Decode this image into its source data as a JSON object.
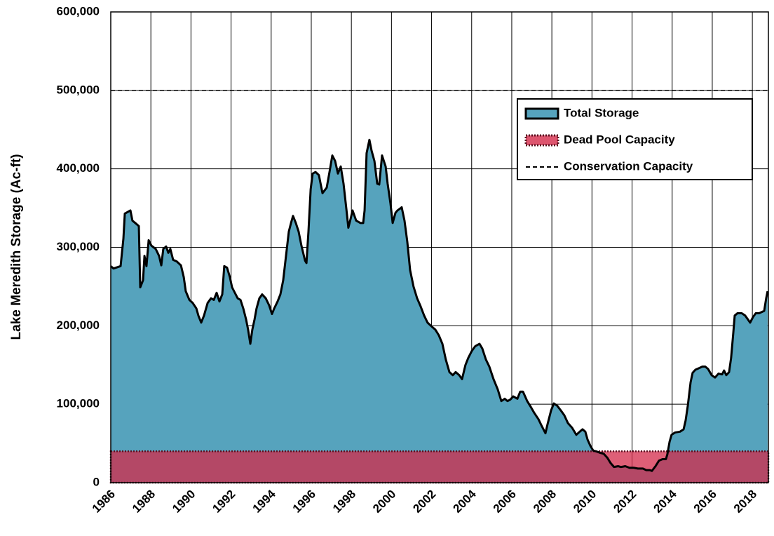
{
  "chart_data": {
    "type": "area",
    "y_label": "Lake Meredith Storage (Ac-ft)",
    "xlim": [
      1986,
      2018.8
    ],
    "xticks": [
      1986,
      1988,
      1990,
      1992,
      1994,
      1996,
      1998,
      2000,
      2002,
      2004,
      2006,
      2008,
      2010,
      2012,
      2014,
      2016,
      2018
    ],
    "ylim": [
      0,
      600000
    ],
    "yticks": [
      0,
      {
        "value": 100000,
        "label": "100,000"
      },
      {
        "value": 200000,
        "label": "200,000"
      },
      {
        "value": 300000,
        "label": "300,000"
      },
      {
        "value": 400000,
        "label": "400,000"
      },
      {
        "value": 500000,
        "label": "500,000"
      },
      {
        "value": 600000,
        "label": "600,000"
      }
    ],
    "grid": true,
    "legend": "upper right",
    "series": [
      {
        "name": "Total Storage",
        "color": "#56a3bd",
        "x": [
          1986.0,
          1986.14,
          1986.49,
          1986.63,
          1986.7,
          1986.84,
          1986.98,
          1987.08,
          1987.22,
          1987.4,
          1987.47,
          1987.61,
          1987.68,
          1987.78,
          1987.89,
          1988.03,
          1988.24,
          1988.41,
          1988.52,
          1988.62,
          1988.76,
          1988.87,
          1988.97,
          1989.11,
          1989.29,
          1989.5,
          1989.64,
          1989.74,
          1989.92,
          1990.09,
          1990.27,
          1990.37,
          1990.51,
          1990.65,
          1990.83,
          1991.0,
          1991.14,
          1991.28,
          1991.42,
          1991.56,
          1991.66,
          1991.8,
          1991.94,
          1992.05,
          1992.15,
          1992.33,
          1992.47,
          1992.61,
          1992.75,
          1992.85,
          1992.96,
          1993.06,
          1993.17,
          1993.27,
          1993.41,
          1993.55,
          1993.73,
          1993.9,
          1994.04,
          1994.15,
          1994.32,
          1994.46,
          1994.6,
          1994.74,
          1994.88,
          1994.99,
          1995.09,
          1995.23,
          1995.37,
          1995.51,
          1995.69,
          1995.76,
          1995.86,
          1995.97,
          1996.07,
          1996.21,
          1996.38,
          1996.56,
          1996.77,
          1996.91,
          1997.05,
          1997.19,
          1997.33,
          1997.47,
          1997.61,
          1997.75,
          1997.85,
          1997.96,
          1998.06,
          1998.24,
          1998.45,
          1998.59,
          1998.66,
          1998.76,
          1998.9,
          1999.01,
          1999.15,
          1999.29,
          1999.39,
          1999.53,
          1999.71,
          1999.81,
          1999.95,
          2000.06,
          2000.2,
          2000.3,
          2000.41,
          2000.51,
          2000.65,
          2000.79,
          2000.93,
          2001.1,
          2001.28,
          2001.45,
          2001.63,
          2001.8,
          2002.01,
          2002.19,
          2002.36,
          2002.54,
          2002.71,
          2002.89,
          2003.06,
          2003.2,
          2003.38,
          2003.52,
          2003.69,
          2003.83,
          2004.01,
          2004.18,
          2004.39,
          2004.53,
          2004.71,
          2004.88,
          2005.09,
          2005.3,
          2005.48,
          2005.65,
          2005.79,
          2005.93,
          2006.07,
          2006.28,
          2006.42,
          2006.56,
          2006.77,
          2006.94,
          2007.12,
          2007.33,
          2007.5,
          2007.68,
          2007.78,
          2007.96,
          2008.1,
          2008.27,
          2008.45,
          2008.62,
          2008.8,
          2009.01,
          2009.22,
          2009.39,
          2009.53,
          2009.67,
          2009.78,
          2009.92,
          2010.06,
          2010.2,
          2010.41,
          2010.58,
          2010.76,
          2010.93,
          2011.1,
          2011.31,
          2011.45,
          2011.66,
          2011.87,
          2012.08,
          2012.29,
          2012.54,
          2012.71,
          2012.89,
          2012.99,
          2013.17,
          2013.34,
          2013.52,
          2013.69,
          2013.76,
          2013.87,
          2013.97,
          2014.15,
          2014.39,
          2014.57,
          2014.67,
          2014.78,
          2014.92,
          2015.02,
          2015.16,
          2015.34,
          2015.51,
          2015.65,
          2015.79,
          2015.97,
          2016.14,
          2016.31,
          2016.49,
          2016.59,
          2016.7,
          2016.84,
          2016.94,
          2017.05,
          2017.12,
          2017.26,
          2017.47,
          2017.64,
          2017.78,
          2017.89,
          2018.03,
          2018.17,
          2018.34,
          2018.59,
          2018.69,
          2018.76
        ],
        "values": [
          276000,
          273000,
          276000,
          311000,
          343000,
          345000,
          347000,
          334000,
          331000,
          327000,
          249000,
          258000,
          289000,
          276000,
          309000,
          302000,
          298000,
          289000,
          277000,
          298000,
          301000,
          293000,
          298000,
          284000,
          282000,
          277000,
          262000,
          244000,
          233000,
          229000,
          222000,
          213000,
          204000,
          213000,
          229000,
          235000,
          233000,
          242000,
          231000,
          240000,
          276000,
          274000,
          262000,
          249000,
          244000,
          235000,
          233000,
          222000,
          208000,
          195000,
          177000,
          195000,
          208000,
          222000,
          235000,
          240000,
          235000,
          226000,
          215000,
          222000,
          231000,
          240000,
          258000,
          289000,
          320000,
          331000,
          340000,
          331000,
          320000,
          302000,
          283000,
          280000,
          320000,
          374000,
          394000,
          396000,
          392000,
          369000,
          376000,
          396000,
          417000,
          410000,
          394000,
          403000,
          381000,
          349000,
          325000,
          336000,
          347000,
          334000,
          331000,
          331000,
          347000,
          420000,
          437000,
          423000,
          410000,
          381000,
          380000,
          417000,
          403000,
          381000,
          356000,
          331000,
          344000,
          347000,
          349000,
          351000,
          334000,
          307000,
          271000,
          250000,
          235000,
          225000,
          213000,
          204000,
          199000,
          195000,
          188000,
          177000,
          157000,
          141000,
          137000,
          141000,
          137000,
          132000,
          150000,
          159000,
          168000,
          174000,
          177000,
          171000,
          157000,
          148000,
          132000,
          119000,
          104000,
          107000,
          104000,
          106000,
          110000,
          107000,
          116000,
          116000,
          104000,
          97000,
          89000,
          81000,
          72000,
          63000,
          74000,
          92000,
          101000,
          98000,
          92000,
          86000,
          76000,
          70000,
          61000,
          65000,
          68000,
          65000,
          55000,
          47000,
          41000,
          40000,
          38000,
          37000,
          32000,
          25000,
          20000,
          21000,
          20000,
          21000,
          19000,
          19000,
          18000,
          18000,
          16000,
          16000,
          15000,
          21000,
          28000,
          30000,
          30000,
          36000,
          52000,
          61000,
          64000,
          65000,
          68000,
          79000,
          98000,
          128000,
          140000,
          144000,
          146000,
          148000,
          148000,
          145000,
          137000,
          134000,
          139000,
          138000,
          143000,
          137000,
          141000,
          159000,
          191000,
          213000,
          216000,
          216000,
          213000,
          208000,
          204000,
          211000,
          216000,
          216000,
          219000,
          235000,
          244000
        ]
      }
    ],
    "reference_lines": [
      {
        "name": "Dead Pool Capacity",
        "value": 40000,
        "color": "#d42a4a"
      },
      {
        "name": "Conservation Capacity",
        "value": 500000,
        "color": "#000000"
      }
    ]
  }
}
